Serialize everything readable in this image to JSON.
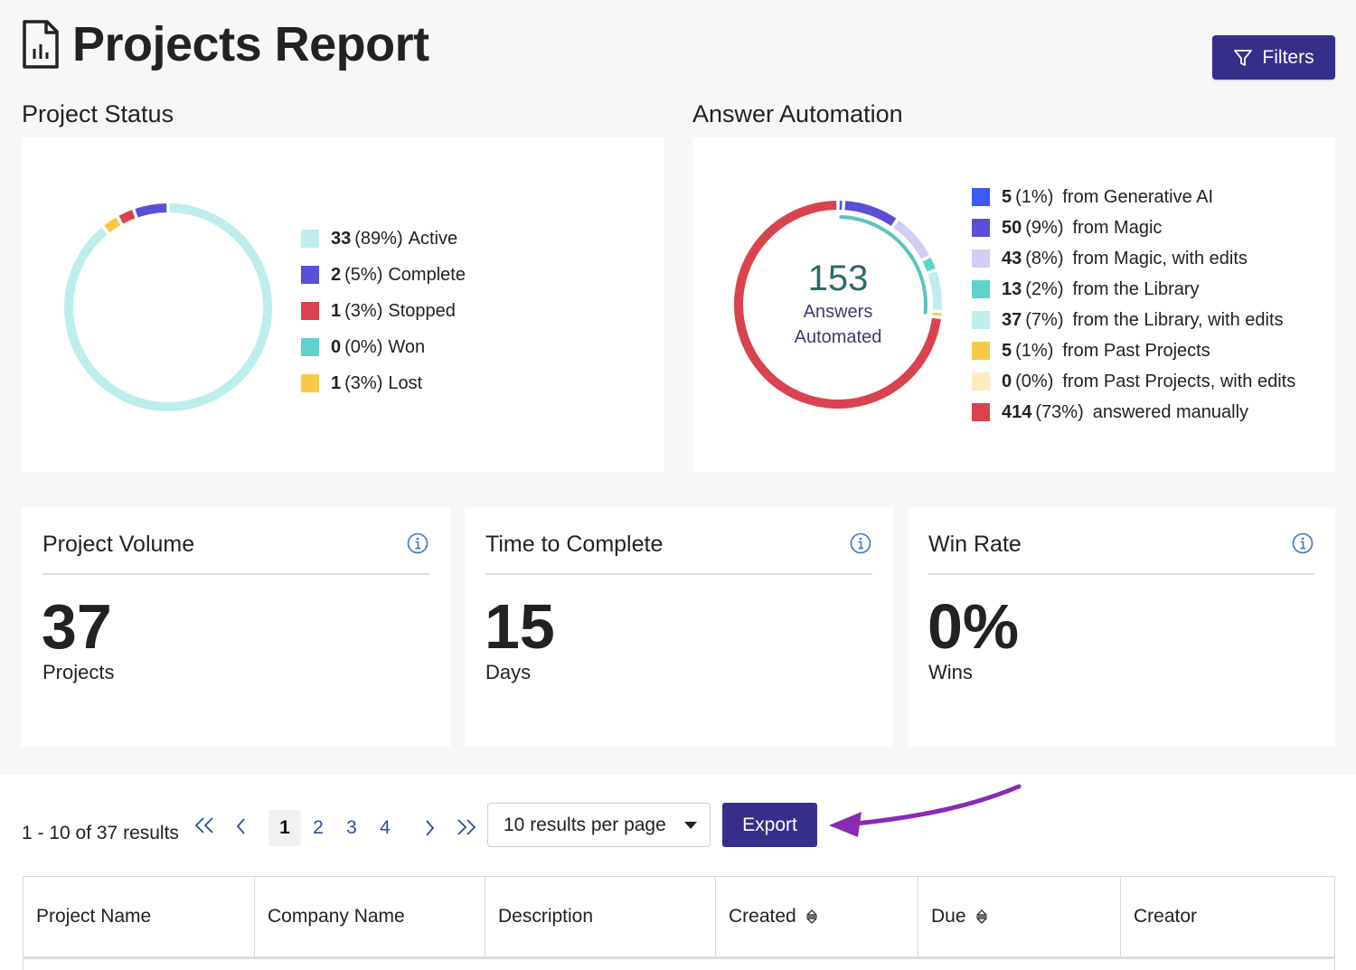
{
  "page": {
    "title": "Projects Report",
    "filters_label": "Filters"
  },
  "project_status": {
    "title": "Project Status",
    "legend": [
      {
        "count": "33",
        "pct": "(89%)",
        "label": "Active",
        "color": "#bdeeed"
      },
      {
        "count": "2",
        "pct": "(5%)",
        "label": "Complete",
        "color": "#5b4fd6"
      },
      {
        "count": "1",
        "pct": "(3%)",
        "label": "Stopped",
        "color": "#d8434f"
      },
      {
        "count": "0",
        "pct": "(0%)",
        "label": "Won",
        "color": "#5dd3cb"
      },
      {
        "count": "1",
        "pct": "(3%)",
        "label": "Lost",
        "color": "#f7c948"
      }
    ]
  },
  "answer_automation": {
    "title": "Answer Automation",
    "center_number": "153",
    "center_label_1": "Answers",
    "center_label_2": "Automated",
    "legend": [
      {
        "count": "5",
        "pct": "(1%)",
        "label": "from Generative AI",
        "color": "#3b5bf5"
      },
      {
        "count": "50",
        "pct": "(9%)",
        "label": "from Magic",
        "color": "#5b4fd6"
      },
      {
        "count": "43",
        "pct": "(8%)",
        "label": "from Magic, with edits",
        "color": "#d2cdf2"
      },
      {
        "count": "13",
        "pct": "(2%)",
        "label": "from the Library",
        "color": "#5dd3cb"
      },
      {
        "count": "37",
        "pct": "(7%)",
        "label": "from the Library, with edits",
        "color": "#bdeeed"
      },
      {
        "count": "5",
        "pct": "(1%)",
        "label": "from Past Projects",
        "color": "#f7c948"
      },
      {
        "count": "0",
        "pct": "(0%)",
        "label": "from Past Projects, with edits",
        "color": "#fdebbd"
      },
      {
        "count": "414",
        "pct": "(73%)",
        "label": "answered manually",
        "color": "#d8434f"
      }
    ]
  },
  "metrics": [
    {
      "title": "Project Volume",
      "value": "37",
      "unit": "Projects"
    },
    {
      "title": "Time to Complete",
      "value": "15",
      "unit": "Days"
    },
    {
      "title": "Win Rate",
      "value": "0%",
      "unit": "Wins"
    }
  ],
  "pagination": {
    "summary": "1 - 10 of 37 results",
    "first": "<<",
    "prev": "<",
    "pages": [
      "1",
      "2",
      "3",
      "4"
    ],
    "next": ">",
    "last": ">>",
    "per_page": "10 results per page",
    "export_label": "Export"
  },
  "table": {
    "columns": [
      "Project Name",
      "Company Name",
      "Description",
      "Created",
      "Due",
      "Creator"
    ]
  },
  "colors": {
    "accent": "#352f8a",
    "annotation_arrow": "#8a2bb5",
    "link": "#2b4f9a"
  }
}
